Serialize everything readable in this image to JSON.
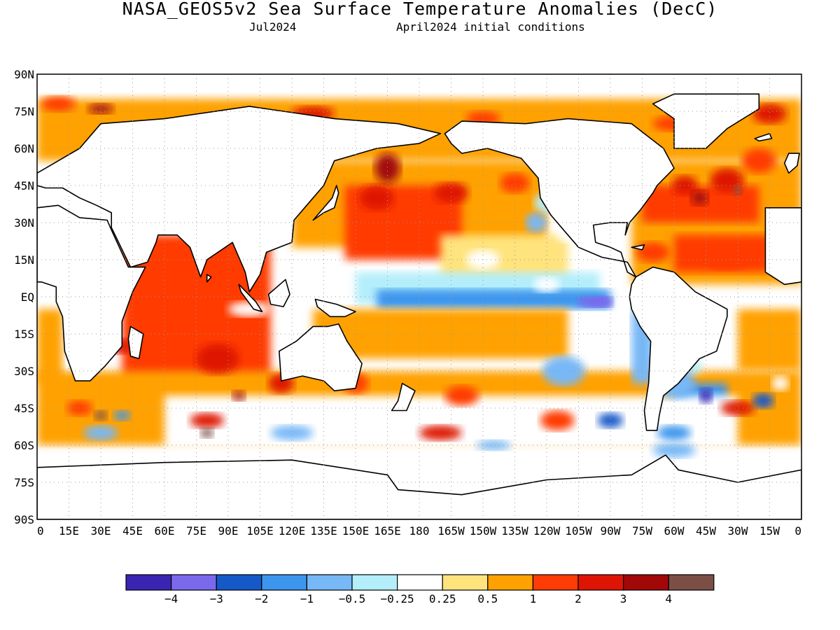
{
  "title": "NASA_GEOS5v2 Sea Surface Temperature Anomalies (DecC)",
  "subtitle_left": "Jul2024",
  "subtitle_right": "April2024 initial conditions",
  "map": {
    "projection": "equirectangular",
    "lon_range": [
      0,
      360
    ],
    "lat_range": [
      -90,
      90
    ],
    "grid": "dotted",
    "lat_labels": [
      "90N",
      "75N",
      "60N",
      "45N",
      "30N",
      "15N",
      "EQ",
      "15S",
      "30S",
      "45S",
      "60S",
      "75S",
      "90S"
    ],
    "lon_labels": [
      "0",
      "15E",
      "30E",
      "45E",
      "60E",
      "75E",
      "90E",
      "105E",
      "120E",
      "135E",
      "150E",
      "165E",
      "180",
      "165W",
      "150W",
      "135W",
      "120W",
      "105W",
      "90W",
      "75W",
      "60W",
      "45W",
      "30W",
      "15W",
      "0"
    ]
  },
  "legend": {
    "colors": [
      "#3a25b2",
      "#7b69ec",
      "#1459c7",
      "#3c96ee",
      "#77b8f7",
      "#b4eefb",
      "#ffffff",
      "#ffe37d",
      "#ffa100",
      "#ff3b06",
      "#de1505",
      "#a30808",
      "#7b4f46"
    ],
    "labels": [
      "-4",
      "-3",
      "-2",
      "-1",
      "-0.5",
      "-0.25",
      "0.25",
      "0.5",
      "1",
      "2",
      "3",
      "4"
    ]
  }
}
